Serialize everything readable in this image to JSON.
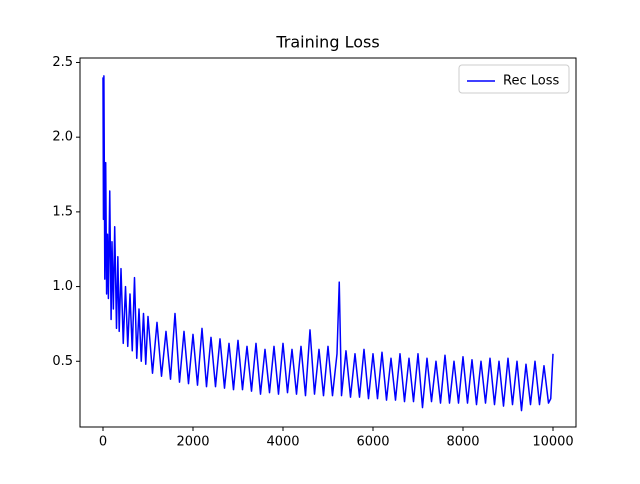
{
  "chart_data": {
    "type": "line",
    "title": "Training Loss",
    "x": [
      0,
      10,
      20,
      40,
      60,
      80,
      100,
      120,
      150,
      180,
      200,
      230,
      260,
      300,
      330,
      360,
      400,
      450,
      500,
      550,
      600,
      650,
      700,
      750,
      800,
      850,
      900,
      950,
      1000,
      1100,
      1200,
      1300,
      1400,
      1500,
      1600,
      1700,
      1800,
      1900,
      2000,
      2100,
      2200,
      2300,
      2400,
      2500,
      2600,
      2700,
      2800,
      2900,
      3000,
      3100,
      3200,
      3300,
      3400,
      3500,
      3600,
      3700,
      3800,
      3900,
      4000,
      4100,
      4200,
      4300,
      4400,
      4500,
      4600,
      4700,
      4800,
      4900,
      5000,
      5100,
      5200,
      5250,
      5300,
      5400,
      5500,
      5600,
      5700,
      5800,
      5900,
      6000,
      6100,
      6200,
      6300,
      6400,
      6500,
      6600,
      6700,
      6800,
      6900,
      7000,
      7100,
      7200,
      7300,
      7400,
      7500,
      7600,
      7700,
      7800,
      7900,
      8000,
      8100,
      8200,
      8300,
      8400,
      8500,
      8600,
      8700,
      8800,
      8900,
      9000,
      9100,
      9200,
      9300,
      9400,
      9500,
      9600,
      9700,
      9800,
      9900,
      9950,
      10000
    ],
    "series": [
      {
        "name": "Rec Loss",
        "color": "#0000ff",
        "values": [
          2.4,
          1.45,
          2.41,
          1.05,
          1.83,
          0.95,
          1.35,
          0.92,
          1.64,
          0.78,
          1.3,
          0.85,
          1.4,
          0.72,
          1.2,
          0.7,
          1.12,
          0.62,
          1.0,
          0.6,
          0.95,
          0.57,
          1.06,
          0.52,
          0.85,
          0.5,
          0.82,
          0.48,
          0.8,
          0.42,
          0.76,
          0.4,
          0.7,
          0.38,
          0.82,
          0.36,
          0.7,
          0.35,
          0.68,
          0.34,
          0.72,
          0.33,
          0.66,
          0.33,
          0.65,
          0.32,
          0.62,
          0.31,
          0.64,
          0.31,
          0.6,
          0.3,
          0.62,
          0.28,
          0.58,
          0.29,
          0.6,
          0.28,
          0.62,
          0.29,
          0.58,
          0.28,
          0.6,
          0.27,
          0.71,
          0.28,
          0.58,
          0.27,
          0.6,
          0.27,
          0.55,
          1.03,
          0.27,
          0.57,
          0.26,
          0.55,
          0.26,
          0.58,
          0.25,
          0.55,
          0.25,
          0.56,
          0.24,
          0.52,
          0.24,
          0.55,
          0.23,
          0.52,
          0.23,
          0.55,
          0.19,
          0.52,
          0.23,
          0.5,
          0.22,
          0.54,
          0.22,
          0.5,
          0.22,
          0.53,
          0.22,
          0.51,
          0.21,
          0.5,
          0.22,
          0.52,
          0.21,
          0.5,
          0.2,
          0.52,
          0.21,
          0.5,
          0.17,
          0.48,
          0.21,
          0.5,
          0.21,
          0.47,
          0.22,
          0.25,
          0.55
        ]
      }
    ],
    "xlim": [
      -511,
      10511
    ],
    "ylim": [
      0.06,
      2.53
    ],
    "xticks": [
      0,
      2000,
      4000,
      6000,
      8000,
      10000
    ],
    "yticks": [
      0.5,
      {
        "value": 1,
        "label": "1.0"
      },
      1.5,
      {
        "value": 2,
        "label": "2.0"
      },
      2.5
    ],
    "grid": false,
    "legend": "upper right"
  }
}
